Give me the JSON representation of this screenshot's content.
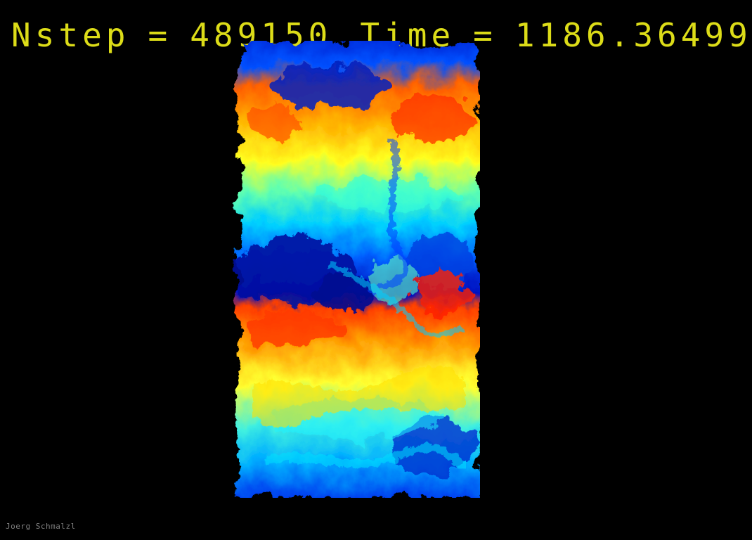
{
  "header": {
    "nstep_label": "Nstep",
    "equals_1": "=",
    "nstep_value": "489150",
    "time_label": "Time",
    "equals_2": "=",
    "time_value": "1186.36499"
  },
  "credit": "Joerg Schmalzl",
  "colors": {
    "background": "#000000",
    "header_text": "#e8e81a",
    "frame": "#ffffff",
    "credit_text": "#808080",
    "colormap": [
      "#00008f",
      "#0040ff",
      "#00c0ff",
      "#40ffc0",
      "#ffff00",
      "#ff8000",
      "#ff0000"
    ]
  },
  "image": {
    "description_kind": "temperature-field-visualization",
    "colormap_name": "jet"
  }
}
